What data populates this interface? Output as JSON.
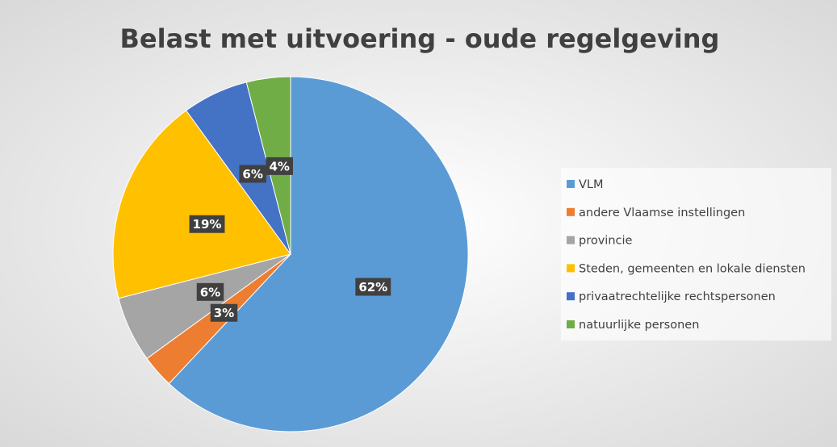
{
  "chart_data": {
    "type": "pie",
    "title": "Belast met uitvoering - oude regelgeving",
    "categories": [
      "VLM",
      "andere Vlaamse instellingen",
      "provincie",
      "Steden, gemeenten en lokale diensten",
      "privaatrechtelijke rechtspersonen",
      "natuurlijke personen"
    ],
    "values": [
      62,
      3,
      6,
      19,
      6,
      4
    ],
    "value_labels": [
      "62%",
      "3%",
      "6%",
      "19%",
      "6%",
      "4%"
    ],
    "colors": [
      "#5b9bd5",
      "#ed7d31",
      "#a5a5a5",
      "#ffc000",
      "#4472c4",
      "#70ad47"
    ],
    "legend": "right"
  }
}
